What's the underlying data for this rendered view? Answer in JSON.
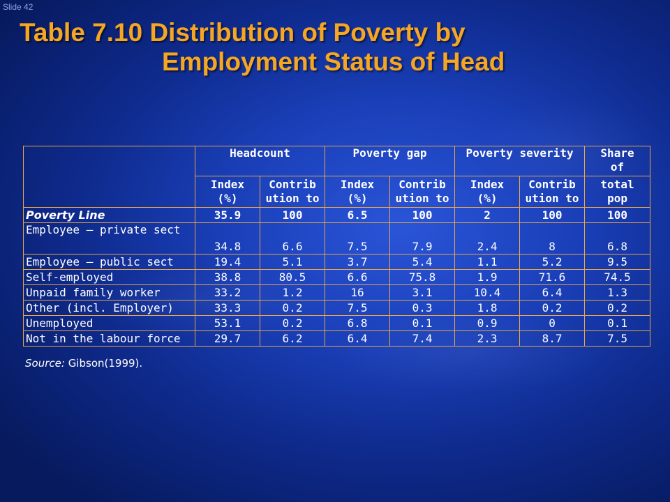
{
  "slide_label": "Slide 42",
  "title": {
    "line1": "Table 7.10 Distribution of Poverty by",
    "line2": "Employment Status of Head"
  },
  "table": {
    "group_headers": {
      "headcount": "Headcount",
      "poverty_gap": "Poverty gap",
      "poverty_severity": "Poverty severity",
      "share_line1": "Share",
      "share_line2": "of",
      "share_line3": "total",
      "share_line4": "pop"
    },
    "sub_headers": {
      "index_line1": "Index",
      "index_line2": "(%)",
      "contrib_line1": "Contrib",
      "contrib_line2": "ution to"
    },
    "rows": [
      {
        "label": "Poverty Line",
        "values": [
          "35.9",
          "100",
          "6.5",
          "100",
          "2",
          "100",
          "100"
        ]
      },
      {
        "label": "Employee – private sect",
        "values": [
          "34.8",
          "6.6",
          "7.5",
          "7.9",
          "2.4",
          "8",
          "6.8"
        ]
      },
      {
        "label": "Employee – public sect",
        "values": [
          "19.4",
          "5.1",
          "3.7",
          "5.4",
          "1.1",
          "5.2",
          "9.5"
        ]
      },
      {
        "label": "Self-employed",
        "values": [
          "38.8",
          "80.5",
          "6.6",
          "75.8",
          "1.9",
          "71.6",
          "74.5"
        ]
      },
      {
        "label": "Unpaid family worker",
        "values": [
          "33.2",
          "1.2",
          "16",
          "3.1",
          "10.4",
          "6.4",
          "1.3"
        ]
      },
      {
        "label": "Other (incl. Employer)",
        "values": [
          "33.3",
          "0.2",
          "7.5",
          "0.3",
          "1.8",
          "0.2",
          "0.2"
        ]
      },
      {
        "label": "Unemployed",
        "values": [
          "53.1",
          "0.2",
          "6.8",
          "0.1",
          "0.9",
          "0",
          "0.1"
        ]
      },
      {
        "label": "Not in the labour force",
        "values": [
          "29.7",
          "6.2",
          "6.4",
          "7.4",
          "2.3",
          "8.7",
          "7.5"
        ]
      }
    ]
  },
  "source": {
    "label": "Source:",
    "text": "Gibson(1999)."
  }
}
